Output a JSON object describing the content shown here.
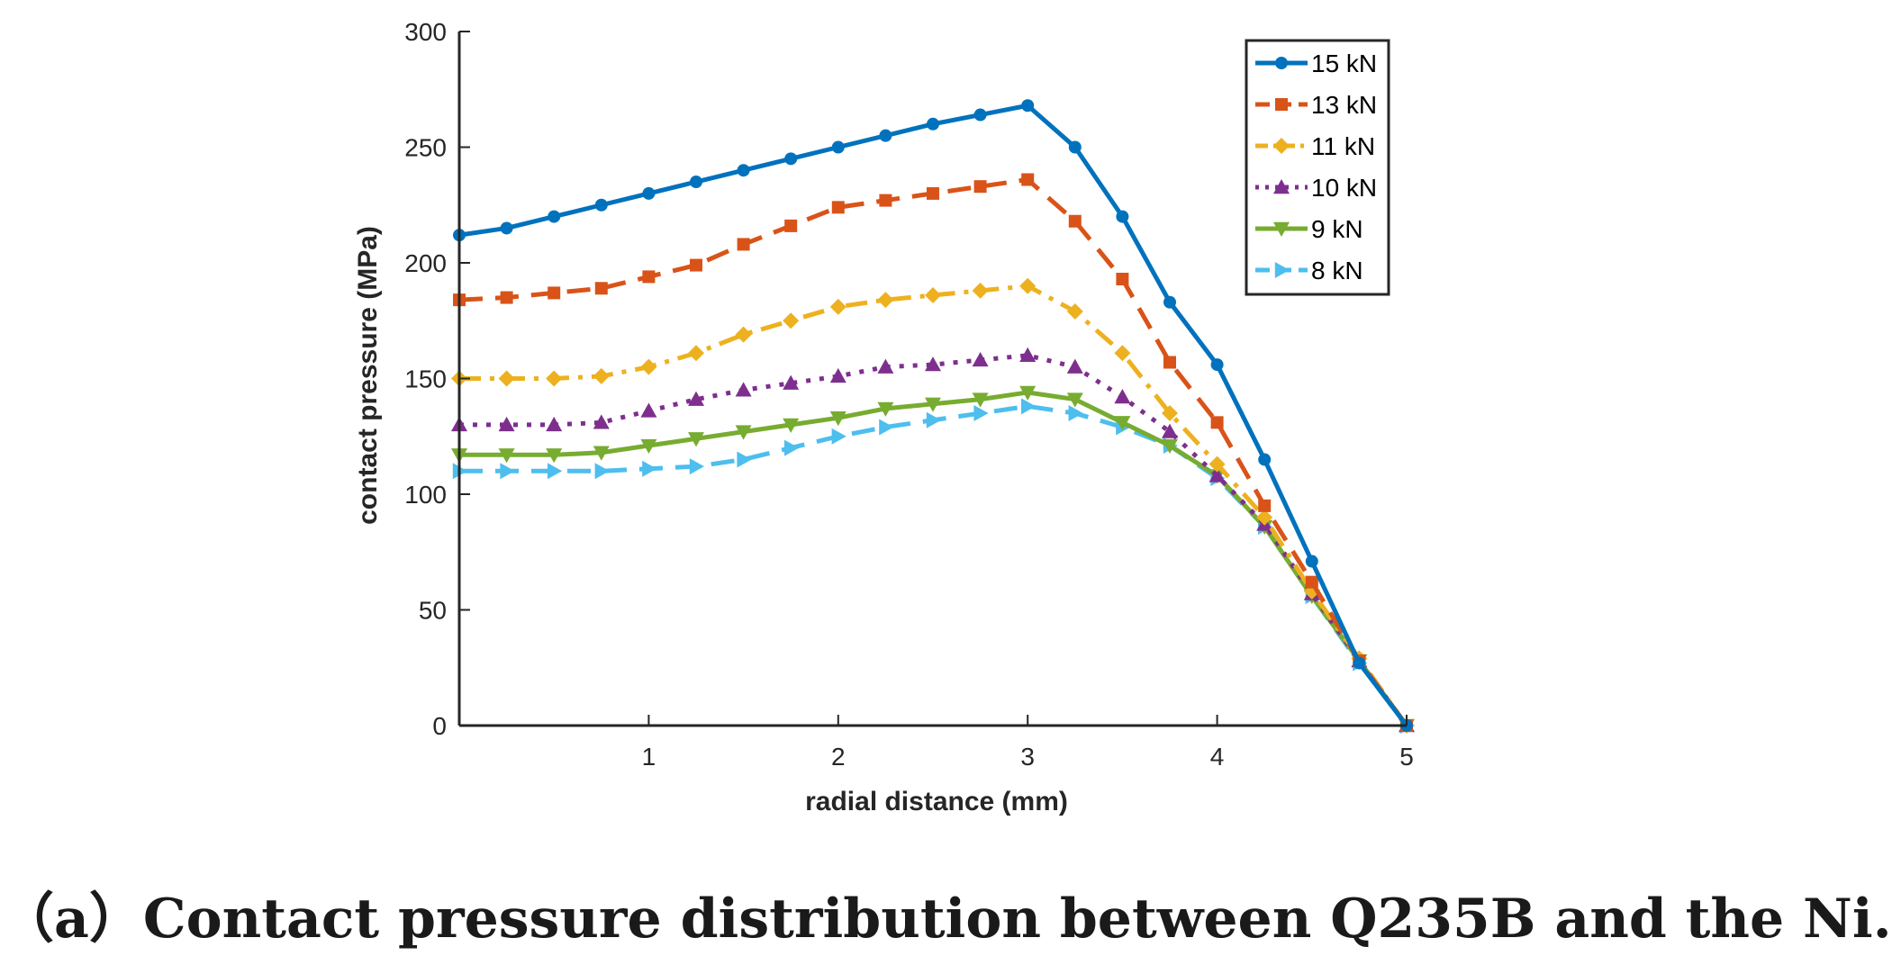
{
  "caption": "（a）Contact pressure distribution between Q235B and the Ni.",
  "chart_data": {
    "type": "line",
    "xlabel": "radial distance (mm)",
    "ylabel": "contact pressure (MPa)",
    "xlim": [
      0,
      5
    ],
    "ylim": [
      0,
      300
    ],
    "xticks": [
      1,
      2,
      3,
      4,
      5
    ],
    "yticks": [
      0,
      50,
      100,
      150,
      200,
      250,
      300
    ],
    "grid": false,
    "legend_position": "top-right",
    "x": [
      0,
      0.25,
      0.5,
      0.75,
      1,
      1.25,
      1.5,
      1.75,
      2,
      2.25,
      2.5,
      2.75,
      3,
      3.25,
      3.5,
      3.75,
      4,
      4.25,
      4.5,
      4.75,
      5
    ],
    "series": [
      {
        "name": "15 kN",
        "color": "#0072bd",
        "dash": "solid",
        "marker": "circle",
        "values": [
          212,
          215,
          220,
          225,
          230,
          235,
          240,
          245,
          250,
          255,
          260,
          264,
          268,
          250,
          220,
          183,
          156,
          115,
          71,
          27,
          0
        ]
      },
      {
        "name": "13 kN",
        "color": "#d95319",
        "dash": "dashed",
        "marker": "square",
        "values": [
          184,
          185,
          187,
          189,
          194,
          199,
          208,
          216,
          224,
          227,
          230,
          233,
          236,
          218,
          193,
          157,
          131,
          95,
          62,
          28,
          0
        ]
      },
      {
        "name": "11 kN",
        "color": "#edb120",
        "dash": "dashdot",
        "marker": "diamond",
        "values": [
          150,
          150,
          150,
          151,
          155,
          161,
          169,
          175,
          181,
          184,
          186,
          188,
          190,
          179,
          161,
          135,
          113,
          90,
          58,
          29,
          0
        ]
      },
      {
        "name": "10 kN",
        "color": "#7e2f8e",
        "dash": "dotted",
        "marker": "triangle-up",
        "values": [
          130,
          130,
          130,
          131,
          136,
          141,
          145,
          148,
          151,
          155,
          156,
          158,
          160,
          155,
          142,
          127,
          108,
          87,
          57,
          28,
          0
        ]
      },
      {
        "name": "9 kN",
        "color": "#77ac30",
        "dash": "solid",
        "marker": "triangle-down",
        "values": [
          117,
          117,
          117,
          118,
          121,
          124,
          127,
          130,
          133,
          137,
          139,
          141,
          144,
          141,
          131,
          121,
          108,
          86,
          56,
          28,
          0
        ]
      },
      {
        "name": "8 kN",
        "color": "#4dbeee",
        "dash": "dashed",
        "marker": "triangle-right",
        "values": [
          110,
          110,
          110,
          110,
          111,
          112,
          115,
          120,
          125,
          129,
          132,
          135,
          138,
          135,
          129,
          121,
          107,
          86,
          56,
          27,
          0
        ]
      }
    ]
  }
}
